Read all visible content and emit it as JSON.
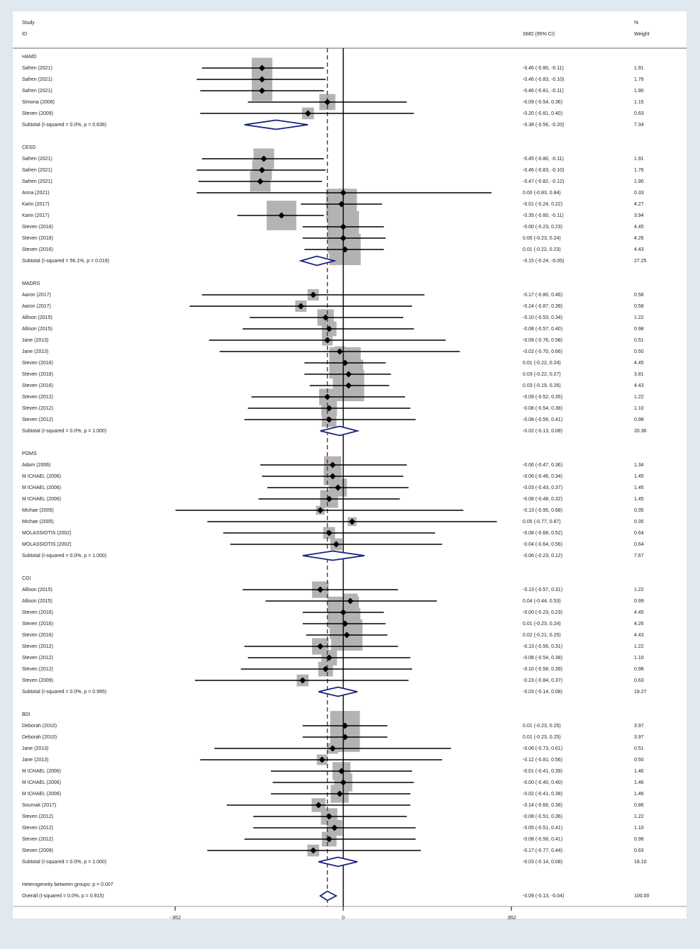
{
  "header": {
    "study": "Study",
    "id": "ID",
    "effect": "SMD (95% CI)",
    "pct": "%",
    "weight": "Weight"
  },
  "chart_data": {
    "type": "forest",
    "effect_measure": "SMD (95% CI)",
    "x_ticks": [
      "-.952",
      "0",
      ".952"
    ],
    "xlim": [
      -0.952,
      0.952
    ],
    "overall_line": -0.09,
    "groups": [
      {
        "name": "HAMD",
        "studies": [
          {
            "id": "Safren (2021)",
            "smd": -0.46,
            "lo": -0.8,
            "hi": -0.11,
            "ci": "-0.46 (-0.80, -0.11)",
            "weight": "1.91"
          },
          {
            "id": "Safren (2021)",
            "smd": -0.46,
            "lo": -0.83,
            "hi": -0.1,
            "ci": "-0.46 (-0.83, -0.10)",
            "weight": "1.76"
          },
          {
            "id": "Safren (2021)",
            "smd": -0.46,
            "lo": -0.81,
            "hi": -0.11,
            "ci": "-0.46 (-0.81, -0.11)",
            "weight": "1.90"
          },
          {
            "id": "Simona (2008)",
            "smd": -0.09,
            "lo": -0.54,
            "hi": 0.36,
            "ci": "-0.09 (-0.54, 0.36)",
            "weight": "1.15"
          },
          {
            "id": "Steven (2009)",
            "smd": -0.2,
            "lo": -0.81,
            "hi": 0.4,
            "ci": "-0.20 (-0.81, 0.40)",
            "weight": "0.63"
          }
        ],
        "subtotal": {
          "label": "Subtotal  (I-squared = 0.0%, p = 0.636)",
          "smd": -0.38,
          "lo": -0.56,
          "hi": -0.2,
          "ci": "-0.38 (-0.56, -0.20)",
          "weight": "7.34"
        }
      },
      {
        "name": "CESD",
        "studies": [
          {
            "id": "Safren (2021)",
            "smd": -0.45,
            "lo": -0.8,
            "hi": -0.11,
            "ci": "-0.45 (-0.80, -0.11)",
            "weight": "1.91"
          },
          {
            "id": "Safren (2021)",
            "smd": -0.46,
            "lo": -0.83,
            "hi": -0.1,
            "ci": "-0.46 (-0.83, -0.10)",
            "weight": "1.76"
          },
          {
            "id": "Safren (2021)",
            "smd": -0.47,
            "lo": -0.82,
            "hi": -0.12,
            "ci": "-0.47 (-0.82, -0.12)",
            "weight": "1.90"
          },
          {
            "id": "Anna (2021)",
            "smd": 0.0,
            "lo": -0.83,
            "hi": 0.84,
            "ci": "0.00 (-0.83, 0.84)",
            "weight": "0.33"
          },
          {
            "id": "Karin (2017)",
            "smd": -0.01,
            "lo": -0.24,
            "hi": 0.22,
            "ci": "-0.01 (-0.24, 0.22)",
            "weight": "4.27"
          },
          {
            "id": "Karin (2017)",
            "smd": -0.35,
            "lo": -0.6,
            "hi": -0.11,
            "ci": "-0.35 (-0.60, -0.11)",
            "weight": "3.94"
          },
          {
            "id": "Steven (2016)",
            "smd": 0.0,
            "lo": -0.23,
            "hi": 0.23,
            "ci": "-0.00 (-0.23, 0.23)",
            "weight": "4.45"
          },
          {
            "id": "Steven (2016)",
            "smd": 0.0,
            "lo": -0.23,
            "hi": 0.24,
            "ci": "0.00 (-0.23, 0.24)",
            "weight": "4.26"
          },
          {
            "id": "Steven (2016)",
            "smd": 0.01,
            "lo": -0.22,
            "hi": 0.23,
            "ci": "0.01 (-0.22, 0.23)",
            "weight": "4.43"
          }
        ],
        "subtotal": {
          "label": "Subtotal  (I-squared = 56.1%, p = 0.019)",
          "smd": -0.15,
          "lo": -0.24,
          "hi": -0.05,
          "ci": "-0.15 (-0.24, -0.05)",
          "weight": "27.25"
        }
      },
      {
        "name": "MADRS",
        "studies": [
          {
            "id": "Aaron (2017)",
            "smd": -0.17,
            "lo": -0.8,
            "hi": 0.46,
            "ci": "-0.17 (-0.80, 0.46)",
            "weight": "0.58"
          },
          {
            "id": "Aaron (2017)",
            "smd": -0.24,
            "lo": -0.87,
            "hi": 0.39,
            "ci": "-0.24 (-0.87, 0.39)",
            "weight": "0.58"
          },
          {
            "id": "Allison (2015)",
            "smd": -0.1,
            "lo": -0.53,
            "hi": 0.34,
            "ci": "-0.10 (-0.53, 0.34)",
            "weight": "1.22"
          },
          {
            "id": "Allison (2015)",
            "smd": -0.08,
            "lo": -0.57,
            "hi": 0.4,
            "ci": "-0.08 (-0.57, 0.40)",
            "weight": "0.98"
          },
          {
            "id": "Jane (2013)",
            "smd": -0.09,
            "lo": -0.76,
            "hi": 0.58,
            "ci": "-0.09 (-0.76, 0.58)",
            "weight": "0.51"
          },
          {
            "id": "Jane (2013)",
            "smd": -0.02,
            "lo": -0.7,
            "hi": 0.66,
            "ci": "-0.02 (-0.70, 0.66)",
            "weight": "0.50"
          },
          {
            "id": "Steven (2016)",
            "smd": 0.01,
            "lo": -0.22,
            "hi": 0.24,
            "ci": "0.01 (-0.22, 0.24)",
            "weight": "4.45"
          },
          {
            "id": "Steven (2016)",
            "smd": 0.03,
            "lo": -0.22,
            "hi": 0.27,
            "ci": "0.03 (-0.22, 0.27)",
            "weight": "3.81"
          },
          {
            "id": "Steven (2016)",
            "smd": 0.03,
            "lo": -0.19,
            "hi": 0.26,
            "ci": "0.03 (-0.19, 0.26)",
            "weight": "4.43"
          },
          {
            "id": "Steven (2012)",
            "smd": -0.09,
            "lo": -0.52,
            "hi": 0.35,
            "ci": "-0.09 (-0.52, 0.35)",
            "weight": "1.22"
          },
          {
            "id": "Steven (2012)",
            "smd": -0.08,
            "lo": -0.54,
            "hi": 0.38,
            "ci": "-0.08 (-0.54, 0.38)",
            "weight": "1.10"
          },
          {
            "id": "Steven (2012)",
            "smd": -0.08,
            "lo": -0.56,
            "hi": 0.41,
            "ci": "-0.08 (-0.56, 0.41)",
            "weight": "0.98"
          }
        ],
        "subtotal": {
          "label": "Subtotal  (I-squared = 0.0%, p = 1.000)",
          "smd": -0.02,
          "lo": -0.13,
          "hi": 0.08,
          "ci": "-0.02 (-0.13, 0.08)",
          "weight": "20.36"
        }
      },
      {
        "name": "POMS",
        "studies": [
          {
            "id": "Adam (2006)",
            "smd": -0.06,
            "lo": -0.47,
            "hi": 0.36,
            "ci": "-0.06 (-0.47, 0.36)",
            "weight": "1.34"
          },
          {
            "id": "M ICHAEL (2006)",
            "smd": -0.06,
            "lo": -0.46,
            "hi": 0.34,
            "ci": "-0.06 (-0.46, 0.34)",
            "weight": "1.45"
          },
          {
            "id": "M ICHAEL (2006)",
            "smd": -0.03,
            "lo": -0.43,
            "hi": 0.37,
            "ci": "-0.03 (-0.43, 0.37)",
            "weight": "1.45"
          },
          {
            "id": "M ICHAEL (2006)",
            "smd": -0.08,
            "lo": -0.48,
            "hi": 0.32,
            "ci": "-0.08 (-0.48, 0.32)",
            "weight": "1.45"
          },
          {
            "id": "Michae (2005)",
            "smd": -0.13,
            "lo": -0.95,
            "hi": 0.68,
            "ci": "-0.13 (-0.95, 0.68)",
            "weight": "0.35"
          },
          {
            "id": "Michae (2005)",
            "smd": 0.05,
            "lo": -0.77,
            "hi": 0.87,
            "ci": "0.05 (-0.77, 0.87)",
            "weight": "0.35"
          },
          {
            "id": "MOLASSIOTIS (2002)",
            "smd": -0.08,
            "lo": -0.68,
            "hi": 0.52,
            "ci": "-0.08 (-0.68, 0.52)",
            "weight": "0.64"
          },
          {
            "id": "MOLASSIOTIS (2002)",
            "smd": -0.04,
            "lo": -0.64,
            "hi": 0.56,
            "ci": "-0.04 (-0.64, 0.56)",
            "weight": "0.64"
          }
        ],
        "subtotal": {
          "label": "Subtotal  (I-squared = 0.0%, p = 1.000)",
          "smd": -0.06,
          "lo": -0.23,
          "hi": 0.12,
          "ci": "-0.06 (-0.23, 0.12)",
          "weight": "7.67"
        }
      },
      {
        "name": "CGI",
        "studies": [
          {
            "id": "Allison (2015)",
            "smd": -0.13,
            "lo": -0.57,
            "hi": 0.31,
            "ci": "-0.13 (-0.57, 0.31)",
            "weight": "1.22"
          },
          {
            "id": "Allison (2015)",
            "smd": 0.04,
            "lo": -0.44,
            "hi": 0.53,
            "ci": "0.04 (-0.44, 0.53)",
            "weight": "0.99"
          },
          {
            "id": "Steven (2016)",
            "smd": 0.0,
            "lo": -0.23,
            "hi": 0.23,
            "ci": "-0.00 (-0.23, 0.23)",
            "weight": "4.45"
          },
          {
            "id": "Steven (2016)",
            "smd": 0.01,
            "lo": -0.23,
            "hi": 0.24,
            "ci": "0.01 (-0.23, 0.24)",
            "weight": "4.26"
          },
          {
            "id": "Steven (2016)",
            "smd": 0.02,
            "lo": -0.21,
            "hi": 0.25,
            "ci": "0.02 (-0.21, 0.25)",
            "weight": "4.43"
          },
          {
            "id": "Steven (2012)",
            "smd": -0.13,
            "lo": -0.56,
            "hi": 0.31,
            "ci": "-0.13 (-0.56, 0.31)",
            "weight": "1.22"
          },
          {
            "id": "Steven (2012)",
            "smd": -0.08,
            "lo": -0.54,
            "hi": 0.38,
            "ci": "-0.08 (-0.54, 0.38)",
            "weight": "1.10"
          },
          {
            "id": "Steven (2012)",
            "smd": -0.1,
            "lo": -0.58,
            "hi": 0.39,
            "ci": "-0.10 (-0.58, 0.39)",
            "weight": "0.98"
          },
          {
            "id": "Steven (2009)",
            "smd": -0.23,
            "lo": -0.84,
            "hi": 0.37,
            "ci": "-0.23 (-0.84, 0.37)",
            "weight": "0.63"
          }
        ],
        "subtotal": {
          "label": "Subtotal  (I-squared = 0.0%, p = 0.995)",
          "smd": -0.03,
          "lo": -0.14,
          "hi": 0.08,
          "ci": "-0.03 (-0.14, 0.08)",
          "weight": "19.27"
        }
      },
      {
        "name": "BDI",
        "studies": [
          {
            "id": "Deborah (2010)",
            "smd": 0.01,
            "lo": -0.23,
            "hi": 0.25,
            "ci": "0.01 (-0.23, 0.25)",
            "weight": "3.97"
          },
          {
            "id": "Deborah (2010)",
            "smd": 0.01,
            "lo": -0.23,
            "hi": 0.25,
            "ci": "0.01 (-0.23, 0.25)",
            "weight": "3.97"
          },
          {
            "id": "Jane (2013)",
            "smd": -0.06,
            "lo": -0.73,
            "hi": 0.61,
            "ci": "-0.06 (-0.73, 0.61)",
            "weight": "0.51"
          },
          {
            "id": "Jane (2013)",
            "smd": -0.12,
            "lo": -0.81,
            "hi": 0.56,
            "ci": "-0.12 (-0.81, 0.56)",
            "weight": "0.50"
          },
          {
            "id": "M ICHAEL (2006)",
            "smd": -0.01,
            "lo": -0.41,
            "hi": 0.39,
            "ci": "-0.01 (-0.41, 0.39)",
            "weight": "1.46"
          },
          {
            "id": "M ICHAEL (2006)",
            "smd": 0.0,
            "lo": -0.4,
            "hi": 0.4,
            "ci": "-0.00 (-0.40, 0.40)",
            "weight": "1.46"
          },
          {
            "id": "M ICHAEL (2006)",
            "smd": -0.02,
            "lo": -0.41,
            "hi": 0.38,
            "ci": "-0.02 (-0.41, 0.38)",
            "weight": "1.46"
          },
          {
            "id": "Sournak (2017)",
            "smd": -0.14,
            "lo": -0.66,
            "hi": 0.38,
            "ci": "-0.14 (-0.66, 0.38)",
            "weight": "0.86"
          },
          {
            "id": "Steven (2012)",
            "smd": -0.08,
            "lo": -0.51,
            "hi": 0.36,
            "ci": "-0.08 (-0.51, 0.36)",
            "weight": "1.22"
          },
          {
            "id": "Steven (2012)",
            "smd": -0.05,
            "lo": -0.51,
            "hi": 0.41,
            "ci": "-0.05 (-0.51, 0.41)",
            "weight": "1.10"
          },
          {
            "id": "Steven (2012)",
            "smd": -0.08,
            "lo": -0.56,
            "hi": 0.41,
            "ci": "-0.08 (-0.56, 0.41)",
            "weight": "0.98"
          },
          {
            "id": "Steven (2009)",
            "smd": -0.17,
            "lo": -0.77,
            "hi": 0.44,
            "ci": "-0.17 (-0.77, 0.44)",
            "weight": "0.63"
          }
        ],
        "subtotal": {
          "label": "Subtotal  (I-squared = 0.0%, p = 1.000)",
          "smd": -0.03,
          "lo": -0.14,
          "hi": 0.08,
          "ci": "-0.03 (-0.14, 0.08)",
          "weight": "18.10"
        }
      }
    ],
    "heterogeneity": "Heterogeneity between groups: p = 0.007",
    "overall": {
      "label": "Overall  (I-squared = 0.0%, p = 0.915)",
      "smd": -0.09,
      "lo": -0.13,
      "hi": -0.04,
      "ci": "-0.09 (-0.13, -0.04)",
      "weight": "100.00"
    }
  }
}
